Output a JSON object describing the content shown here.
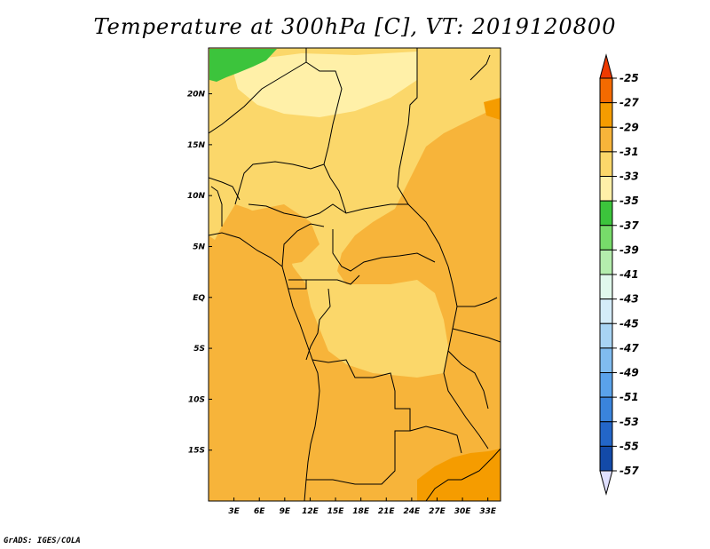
{
  "title": "Temperature at 300hPa [C], VT: 2019120800",
  "credit": "GrADS: IGES/COLA",
  "map": {
    "variable": "Temperature",
    "level": "300hPa",
    "units": "C",
    "valid_time": "2019120800",
    "lon_range": [
      0,
      34.5
    ],
    "lat_range": [
      -20,
      24.5
    ],
    "lon_ticks": [
      {
        "value": 3,
        "label": "3E"
      },
      {
        "value": 6,
        "label": "6E"
      },
      {
        "value": 9,
        "label": "9E"
      },
      {
        "value": 12,
        "label": "12E"
      },
      {
        "value": 15,
        "label": "15E"
      },
      {
        "value": 18,
        "label": "18E"
      },
      {
        "value": 21,
        "label": "21E"
      },
      {
        "value": 24,
        "label": "24E"
      },
      {
        "value": 27,
        "label": "27E"
      },
      {
        "value": 30,
        "label": "30E"
      },
      {
        "value": 33,
        "label": "33E"
      }
    ],
    "lat_ticks": [
      {
        "value": 20,
        "label": "20N"
      },
      {
        "value": 15,
        "label": "15N"
      },
      {
        "value": 10,
        "label": "10N"
      },
      {
        "value": 5,
        "label": "5N"
      },
      {
        "value": 0,
        "label": "EQ"
      },
      {
        "value": -5,
        "label": "5S"
      },
      {
        "value": -10,
        "label": "10S"
      },
      {
        "value": -15,
        "label": "15S"
      }
    ]
  },
  "colorbar": {
    "labels": [
      "-25",
      "-27",
      "-29",
      "-31",
      "-33",
      "-35",
      "-37",
      "-39",
      "-41",
      "-43",
      "-45",
      "-47",
      "-49",
      "-51",
      "-53",
      "-55",
      "-57"
    ],
    "colors": [
      "#ee3a00",
      "#f46a00",
      "#f59c00",
      "#f7b43a",
      "#fbd76a",
      "#fff0a8",
      "#3cc43c",
      "#77db6a",
      "#b4edad",
      "#e0f8ec",
      "#d4ecf8",
      "#a8d4f4",
      "#80bcf0",
      "#5aa2ea",
      "#3a84dc",
      "#2366c8",
      "#134aa8",
      "#00186e"
    ],
    "upper_arrow_color": "#ee3a00",
    "lower_arrow_color": "#e0e0ff"
  }
}
